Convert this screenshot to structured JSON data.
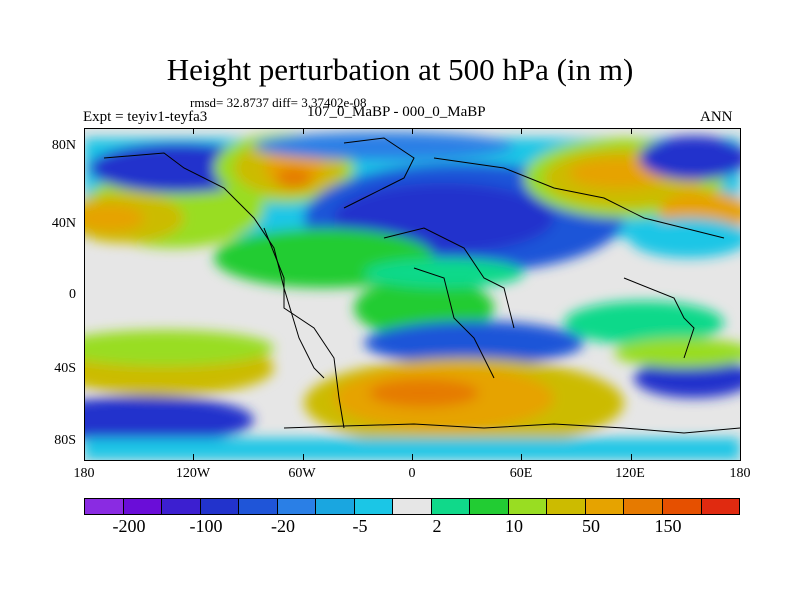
{
  "title": "Height perturbation at 500 hPa (in m)",
  "stats_text": "rmsd= 32.8737 diff= 3.37402e-08",
  "expt_label": "Expt = teyiv1-teyfa3",
  "subtitle": "107_0_MaBP - 000_0_MaBP",
  "season": "ANN",
  "lat_labels": [
    "80N",
    "40N",
    "0",
    "40S",
    "80S"
  ],
  "lon_labels": [
    "180",
    "120W",
    "60W",
    "0",
    "60E",
    "120E",
    "180"
  ],
  "colorbar": {
    "colors": [
      "#8a2be2",
      "#6a0dd8",
      "#3c1fd0",
      "#2233cc",
      "#1f55d8",
      "#2a7fe6",
      "#1aa6e0",
      "#1bc6e6",
      "#e6e6e6",
      "#10d98a",
      "#22cc33",
      "#99dd22",
      "#ccbb00",
      "#e6a300",
      "#e67a00",
      "#e65000",
      "#e02a10"
    ],
    "labels": [
      "-200",
      "-100",
      "-20",
      "-5",
      "2",
      "10",
      "50",
      "150"
    ]
  },
  "map": {
    "lon_range": [
      -180,
      180
    ],
    "lat_range": [
      -90,
      90
    ]
  }
}
